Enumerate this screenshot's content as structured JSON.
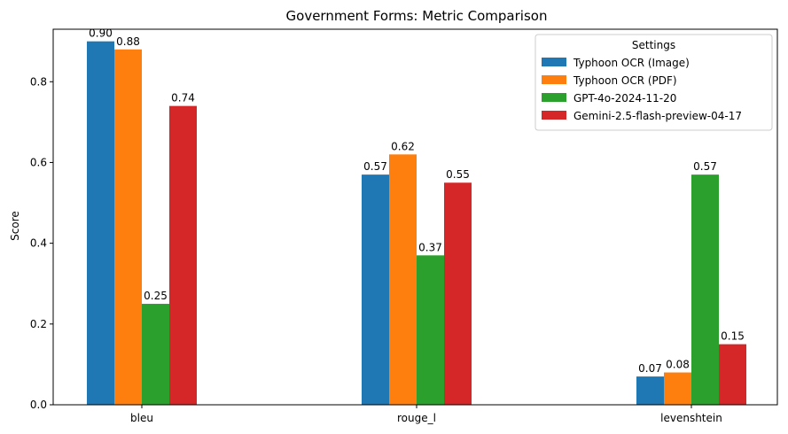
{
  "chart_data": {
    "type": "bar",
    "title": "Government Forms: Metric Comparison",
    "xlabel": "",
    "ylabel": "Score",
    "ylim": [
      0,
      0.93
    ],
    "yticks": [
      "0.0",
      "0.2",
      "0.4",
      "0.6",
      "0.8"
    ],
    "ytick_values": [
      0,
      0.2,
      0.4,
      0.6,
      0.8
    ],
    "categories": [
      "bleu",
      "rouge_l",
      "levenshtein"
    ],
    "legend_title": "Settings",
    "legend_position": "top-right",
    "grid": false,
    "series": [
      {
        "name": "Typhoon OCR (Image)",
        "color": "#1f77b4",
        "values": [
          0.9,
          0.57,
          0.07
        ],
        "labels": [
          "0.90",
          "0.57",
          "0.07"
        ]
      },
      {
        "name": "Typhoon OCR (PDF)",
        "color": "#ff7f0e",
        "values": [
          0.88,
          0.62,
          0.08
        ],
        "labels": [
          "0.88",
          "0.62",
          "0.08"
        ]
      },
      {
        "name": "GPT-4o-2024-11-20",
        "color": "#2ca02c",
        "values": [
          0.25,
          0.37,
          0.57
        ],
        "labels": [
          "0.25",
          "0.37",
          "0.57"
        ]
      },
      {
        "name": "Gemini-2.5-flash-preview-04-17",
        "color": "#d62728",
        "values": [
          0.74,
          0.55,
          0.15
        ],
        "labels": [
          "0.74",
          "0.55",
          "0.15"
        ]
      }
    ]
  }
}
